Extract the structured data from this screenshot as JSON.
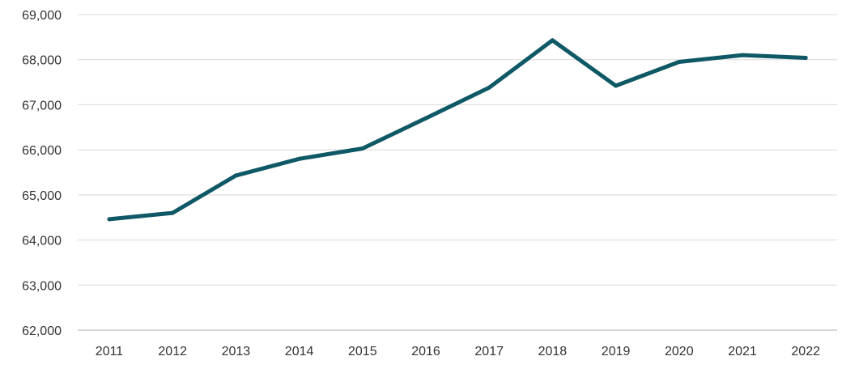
{
  "chart_data": {
    "type": "line",
    "title": "",
    "xlabel": "",
    "ylabel": "",
    "categories": [
      "2011",
      "2012",
      "2013",
      "2014",
      "2015",
      "2016",
      "2017",
      "2018",
      "2019",
      "2020",
      "2021",
      "2022"
    ],
    "series": [
      {
        "values": [
          64460,
          64600,
          65430,
          65800,
          66030,
          66700,
          67380,
          68430,
          67420,
          67950,
          68100,
          68040
        ]
      }
    ],
    "ylim": [
      62000,
      69000
    ],
    "y_ticks": [
      62000,
      63000,
      64000,
      65000,
      66000,
      67000,
      68000,
      69000
    ],
    "y_tick_labels": [
      "62,000",
      "63,000",
      "64,000",
      "65,000",
      "66,000",
      "67,000",
      "68,000",
      "69,000"
    ],
    "grid": true,
    "legend": "none",
    "colors": {
      "line": "#0f5866",
      "grid": "#d9d9d9"
    }
  }
}
